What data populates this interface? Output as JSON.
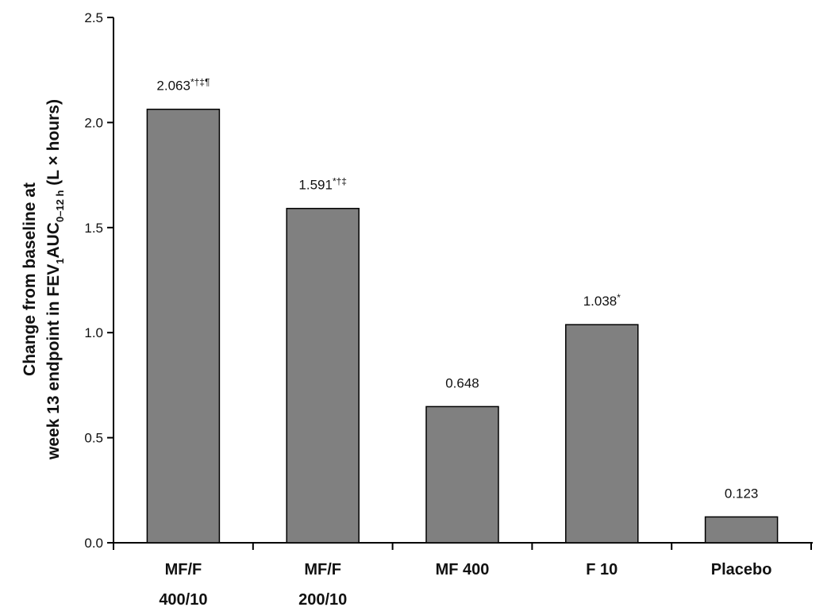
{
  "chart_data": {
    "type": "bar",
    "categories": [
      [
        "MF/F",
        "400/10"
      ],
      [
        "MF/F",
        "200/10"
      ],
      [
        "MF 400"
      ],
      [
        "F 10"
      ],
      [
        "Placebo"
      ]
    ],
    "values": [
      2.063,
      1.591,
      0.648,
      1.038,
      0.123
    ],
    "data_labels": [
      {
        "value": "2.063",
        "marks": "*†‡¶"
      },
      {
        "value": "1.591",
        "marks": "*†‡"
      },
      {
        "value": "0.648",
        "marks": ""
      },
      {
        "value": "1.038",
        "marks": "*"
      },
      {
        "value": "0.123",
        "marks": ""
      }
    ],
    "ylabel": {
      "line1": "Change from baseline at",
      "line2_parts": [
        {
          "text": "week 13 endpoint in FEV",
          "style": "normal"
        },
        {
          "text": "1",
          "style": "sub"
        },
        {
          "text": "AUC",
          "style": "normal"
        },
        {
          "text": "0–12 h",
          "style": "sub"
        },
        {
          "text": " (L × hours)",
          "style": "normal"
        }
      ]
    },
    "ylim": [
      0,
      2.5
    ],
    "yticks": [
      0.0,
      0.5,
      1.0,
      1.5,
      2.0,
      2.5
    ],
    "ytick_labels": [
      "0.0",
      "0.5",
      "1.0",
      "1.5",
      "2.0",
      "2.5"
    ],
    "bar_color": "#808080",
    "grid": false,
    "legend": "none"
  }
}
